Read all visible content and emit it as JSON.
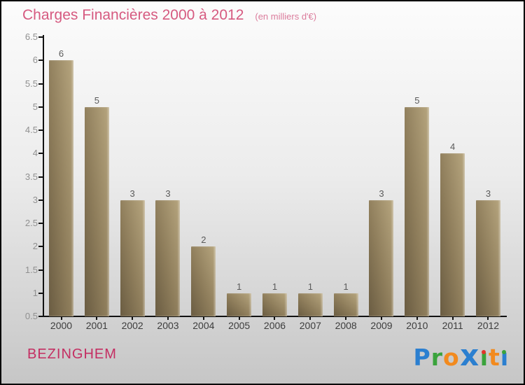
{
  "title": {
    "text": "Charges Financières 2000 à 2012",
    "subtitle": "(en milliers d'€)"
  },
  "chart_data": {
    "type": "bar",
    "title": "Charges Financières 2000 à 2012",
    "unit_note": "en milliers d'€",
    "categories": [
      "2000",
      "2001",
      "2002",
      "2003",
      "2004",
      "2005",
      "2006",
      "2007",
      "2008",
      "2009",
      "2010",
      "2011",
      "2012"
    ],
    "values": [
      6,
      5,
      3,
      3,
      2,
      1,
      1,
      1,
      1,
      3,
      5,
      4,
      3
    ],
    "xlabel": "",
    "ylabel": "",
    "ylim": [
      0.5,
      6.5
    ],
    "ytick_step": 0.5,
    "grid": false,
    "legend": false,
    "value_labels": true
  },
  "footer": {
    "location": "BEZINGHEM",
    "logo": {
      "name": "Proxiti",
      "letters": [
        {
          "ch": "P",
          "color": "#2b7fd0"
        },
        {
          "ch": "r",
          "color": "#3aa33c"
        },
        {
          "ch": "o",
          "color": "#f28a1e"
        },
        {
          "ch": "x",
          "color": "#2b7fd0",
          "large": true
        },
        {
          "ch": "i",
          "color": "#3aa33c",
          "dot": "#e2342a"
        },
        {
          "ch": "t",
          "color": "#f28a1e"
        },
        {
          "ch": "i",
          "color": "#2b7fd0",
          "dot": "#3aa33c"
        }
      ]
    }
  },
  "colors": {
    "bgTop": "#fcfcfc",
    "bgBottom": "#c6c6c6",
    "titlePink": "#d65a80",
    "subtitlePink": "#db7c9c",
    "locationPink": "#c42e62",
    "axis": "#111111",
    "yLabel": "#909090",
    "xLabel": "#3d3d3d",
    "valueLabel": "#5a5a5a",
    "barDark": "#6a5c42",
    "barMid": "#8e7d5b",
    "barLight": "#b7a67f"
  }
}
